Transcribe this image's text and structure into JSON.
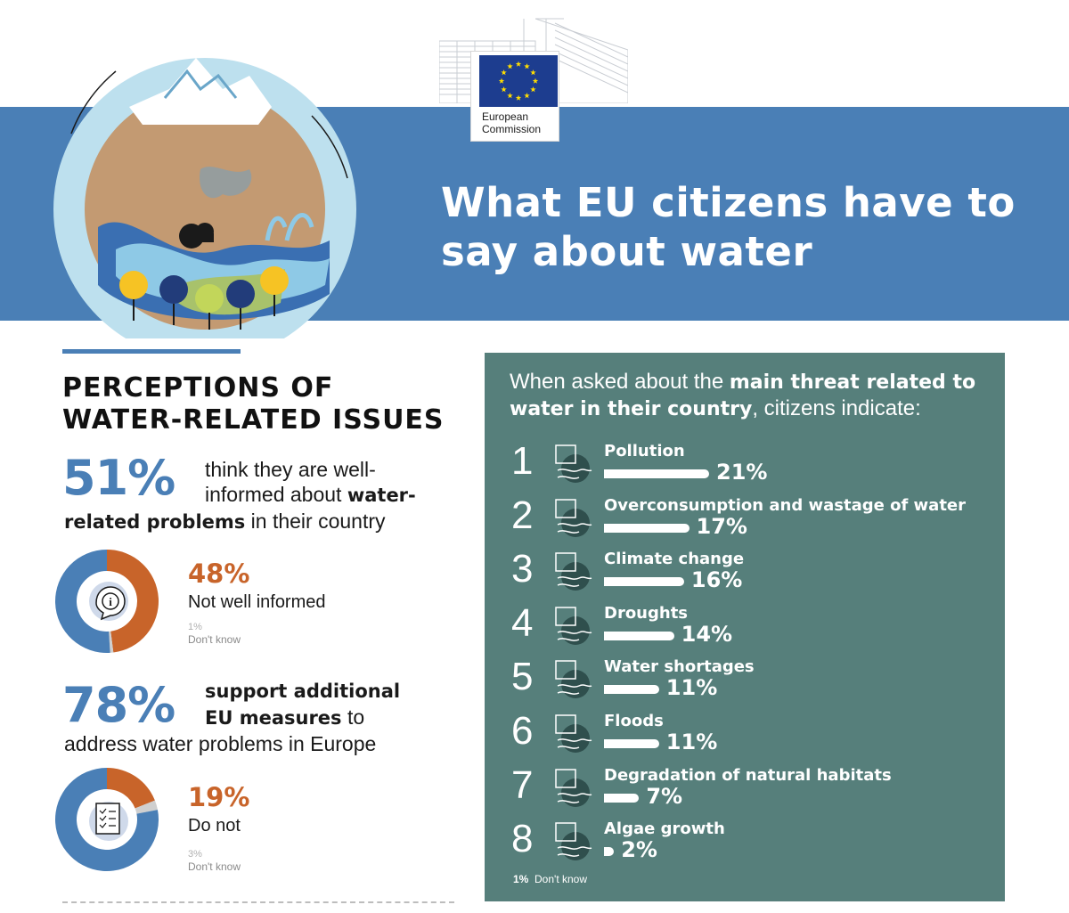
{
  "header": {
    "logo_text": "European\nCommission",
    "title_line1": "What EU citizens have to",
    "title_line2": "say about water"
  },
  "left": {
    "section_title_line1": "PERCEPTIONS OF",
    "section_title_line2": "WATER-RELATED ISSUES",
    "stat1": {
      "pct": "51%",
      "text_a": "think they are well-",
      "text_b": "informed about ",
      "text_b_bold": "water-",
      "text_c_bold": "related problems",
      "text_c": " in their country",
      "other_pct": "48%",
      "other_label": "Not well informed",
      "dk_pct": "1%",
      "dk_label": "Don't know",
      "values": [
        51,
        48,
        1
      ]
    },
    "stat2": {
      "pct": "78%",
      "text_a_bold": "support additional",
      "text_b_bold": "EU measures",
      "text_b": " to",
      "text_c": "address water problems in Europe",
      "other_pct": "19%",
      "other_label": "Do not",
      "dk_pct": "3%",
      "dk_label": "Don't know",
      "values": [
        78,
        19,
        3
      ]
    }
  },
  "panel": {
    "intro_a": "When asked about the ",
    "intro_bold": "main threat related to water in their country",
    "intro_b": ", citizens indicate:",
    "footer_pct": "1%",
    "footer_label": "Don't know"
  },
  "chart_data": {
    "type": "bar",
    "categories": [
      "Pollution",
      "Overconsumption and wastage of water",
      "Climate change",
      "Droughts",
      "Water shortages",
      "Floods",
      "Degradation of natural habitats",
      "Algae growth"
    ],
    "values": [
      21,
      17,
      16,
      14,
      11,
      11,
      7,
      2
    ],
    "ranks": [
      "1",
      "2",
      "3",
      "4",
      "5",
      "6",
      "7",
      "8"
    ],
    "labels": [
      "21%",
      "17%",
      "16%",
      "14%",
      "11%",
      "11%",
      "7%",
      "2%"
    ],
    "icons": [
      "factory-pollution-icon",
      "tap-water-waste-icon",
      "climate-globe-icon",
      "drought-icon",
      "water-shortage-tap-icon",
      "flood-house-icon",
      "habitat-degradation-icon",
      "algae-icon"
    ]
  },
  "colors": {
    "banner_blue": "#4a7fb6",
    "panel_teal": "#567f7b",
    "accent_orange": "#c8642a",
    "eu_flag_blue": "#1d3d8f",
    "eu_star_yellow": "#ffdd00"
  }
}
